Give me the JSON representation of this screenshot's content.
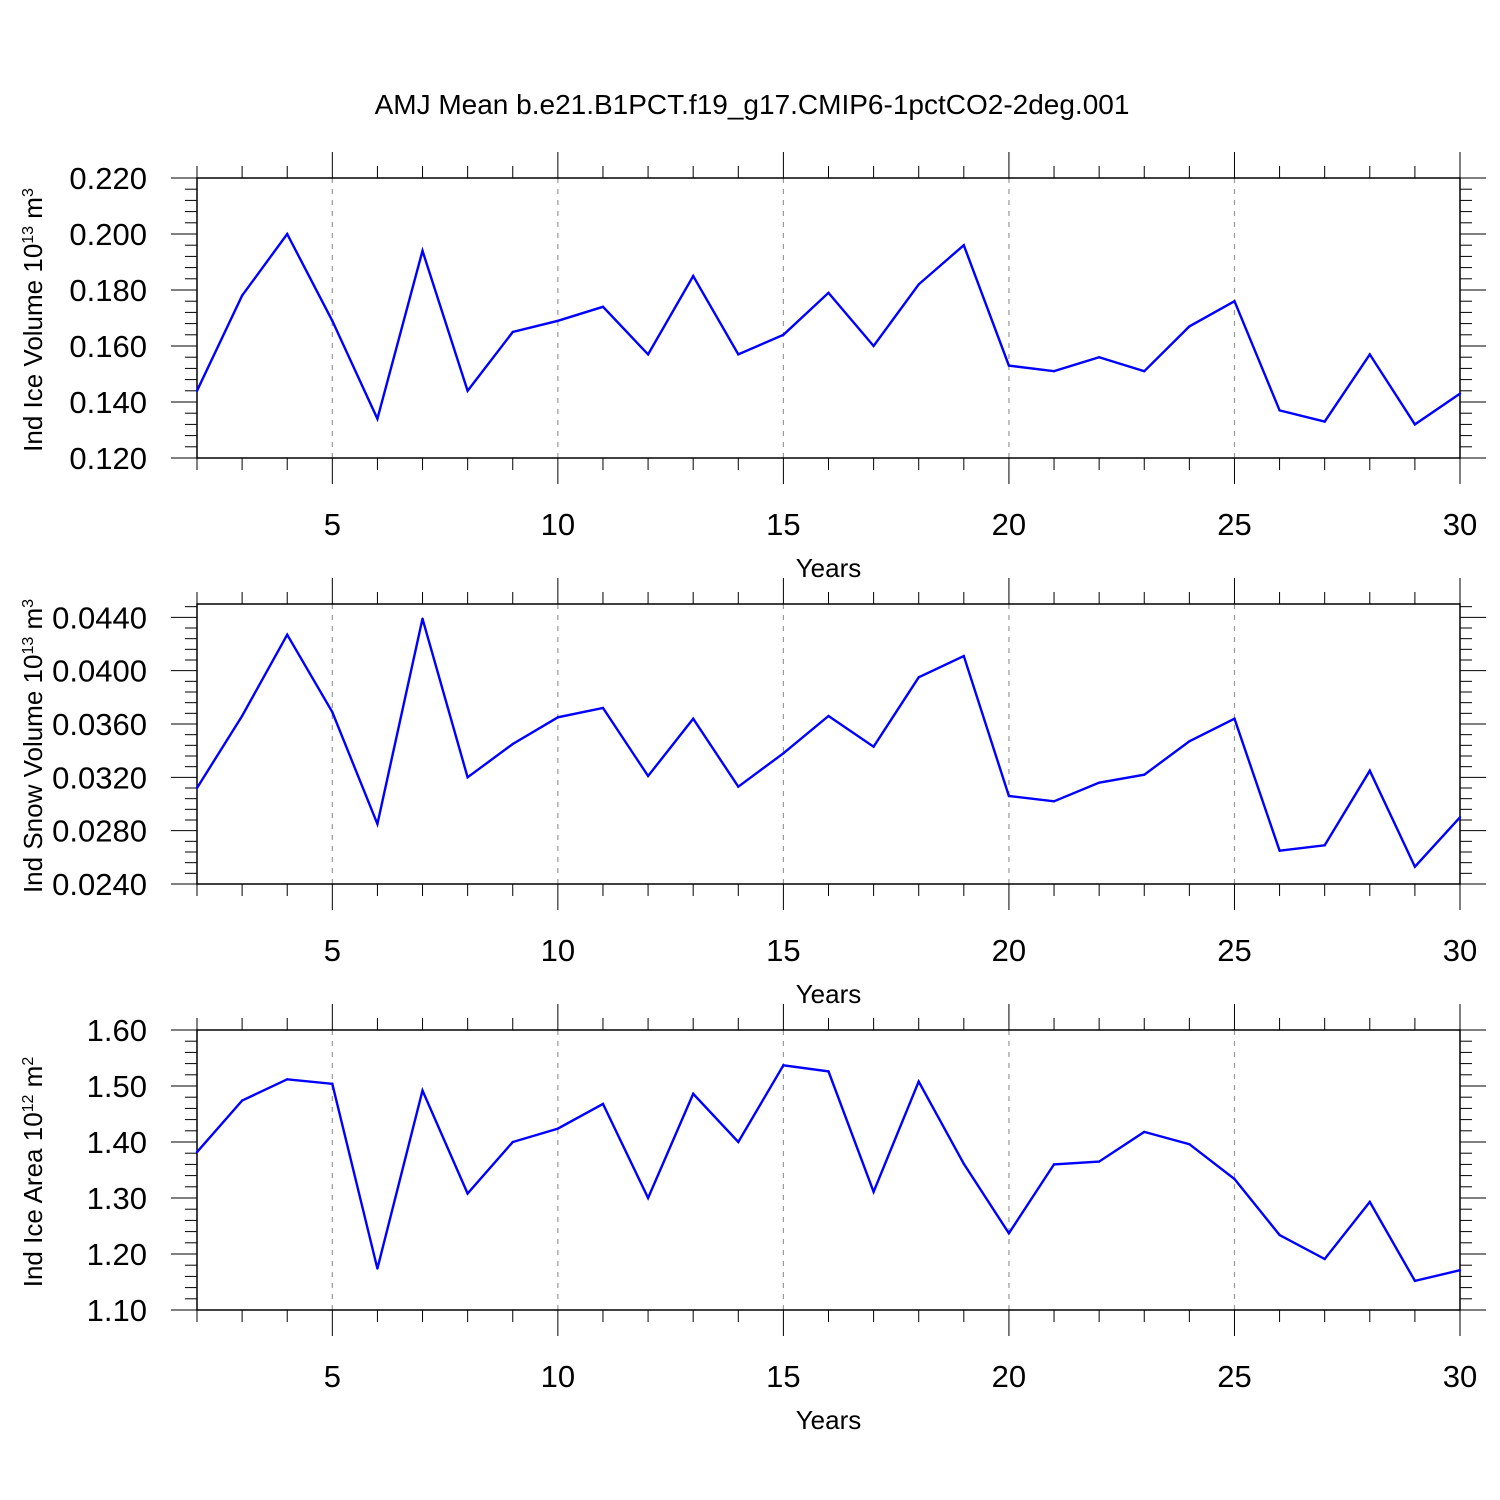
{
  "title": "AMJ Mean b.e21.B1PCT.f19_g17.CMIP6-1pctCO2-2deg.001",
  "colors": {
    "series": "#0000ff",
    "axis": "#000000",
    "grid": "#9a9a9a"
  },
  "chart_data": [
    {
      "type": "line",
      "ylabel": {
        "prefix": "Ind Ice Volume 10",
        "exp": "13",
        "unit": " m",
        "unit_exp": "3"
      },
      "xlabel": "Years",
      "xlim": [
        2,
        30
      ],
      "ylim": [
        0.12,
        0.22
      ],
      "yticks": [
        0.12,
        0.14,
        0.16,
        0.18,
        0.2,
        0.22
      ],
      "ytick_labels": [
        "0.120",
        "0.140",
        "0.160",
        "0.180",
        "0.200",
        "0.220"
      ],
      "xticks": [
        5,
        10,
        15,
        20,
        25,
        30
      ],
      "xtick_labels": [
        "5",
        "10",
        "15",
        "20",
        "25",
        "30"
      ],
      "x": [
        2,
        3,
        4,
        5,
        6,
        7,
        8,
        9,
        10,
        11,
        12,
        13,
        14,
        15,
        16,
        17,
        18,
        19,
        20,
        21,
        22,
        23,
        24,
        25,
        26,
        27,
        28,
        29,
        30
      ],
      "values": [
        0.144,
        0.178,
        0.2,
        0.169,
        0.134,
        0.194,
        0.144,
        0.165,
        0.169,
        0.174,
        0.157,
        0.185,
        0.157,
        0.164,
        0.179,
        0.16,
        0.182,
        0.196,
        0.153,
        0.151,
        0.156,
        0.151,
        0.167,
        0.176,
        0.137,
        0.133,
        0.157,
        0.132,
        0.143
      ]
    },
    {
      "type": "line",
      "ylabel": {
        "prefix": "Ind Snow Volume 10",
        "exp": "13",
        "unit": " m",
        "unit_exp": "3"
      },
      "xlabel": "Years",
      "xlim": [
        2,
        30
      ],
      "ylim": [
        0.024,
        0.045
      ],
      "yticks": [
        0.024,
        0.028,
        0.032,
        0.036,
        0.04,
        0.044
      ],
      "ytick_labels": [
        "0.0240",
        "0.0280",
        "0.0320",
        "0.0360",
        "0.0400",
        "0.0440"
      ],
      "xticks": [
        5,
        10,
        15,
        20,
        25,
        30
      ],
      "xtick_labels": [
        "5",
        "10",
        "15",
        "20",
        "25",
        "30"
      ],
      "x": [
        2,
        3,
        4,
        5,
        6,
        7,
        8,
        9,
        10,
        11,
        12,
        13,
        14,
        15,
        16,
        17,
        18,
        19,
        20,
        21,
        22,
        23,
        24,
        25,
        26,
        27,
        28,
        29,
        30
      ],
      "values": [
        0.0312,
        0.0366,
        0.0427,
        0.0369,
        0.0285,
        0.0439,
        0.032,
        0.0345,
        0.0365,
        0.0372,
        0.0321,
        0.0364,
        0.0313,
        0.0338,
        0.0366,
        0.0343,
        0.0395,
        0.0411,
        0.0306,
        0.0302,
        0.0316,
        0.0322,
        0.0347,
        0.0364,
        0.0265,
        0.0269,
        0.0325,
        0.0253,
        0.029
      ]
    },
    {
      "type": "line",
      "ylabel": {
        "prefix": "Ind Ice Area 10",
        "exp": "12",
        "unit": " m",
        "unit_exp": "2"
      },
      "xlabel": "Years",
      "xlim": [
        2,
        30
      ],
      "ylim": [
        1.1,
        1.6
      ],
      "yticks": [
        1.1,
        1.2,
        1.3,
        1.4,
        1.5,
        1.6
      ],
      "ytick_labels": [
        "1.10",
        "1.20",
        "1.30",
        "1.40",
        "1.50",
        "1.60"
      ],
      "xticks": [
        5,
        10,
        15,
        20,
        25,
        30
      ],
      "xtick_labels": [
        "5",
        "10",
        "15",
        "20",
        "25",
        "30"
      ],
      "x": [
        2,
        3,
        4,
        5,
        6,
        7,
        8,
        9,
        10,
        11,
        12,
        13,
        14,
        15,
        16,
        17,
        18,
        19,
        20,
        21,
        22,
        23,
        24,
        25,
        26,
        27,
        28,
        29,
        30
      ],
      "values": [
        1.382,
        1.474,
        1.512,
        1.504,
        1.174,
        1.492,
        1.308,
        1.4,
        1.424,
        1.468,
        1.3,
        1.486,
        1.4,
        1.537,
        1.526,
        1.311,
        1.508,
        1.361,
        1.237,
        1.36,
        1.365,
        1.418,
        1.396,
        1.334,
        1.234,
        1.191,
        1.293,
        1.152,
        1.171
      ]
    }
  ]
}
